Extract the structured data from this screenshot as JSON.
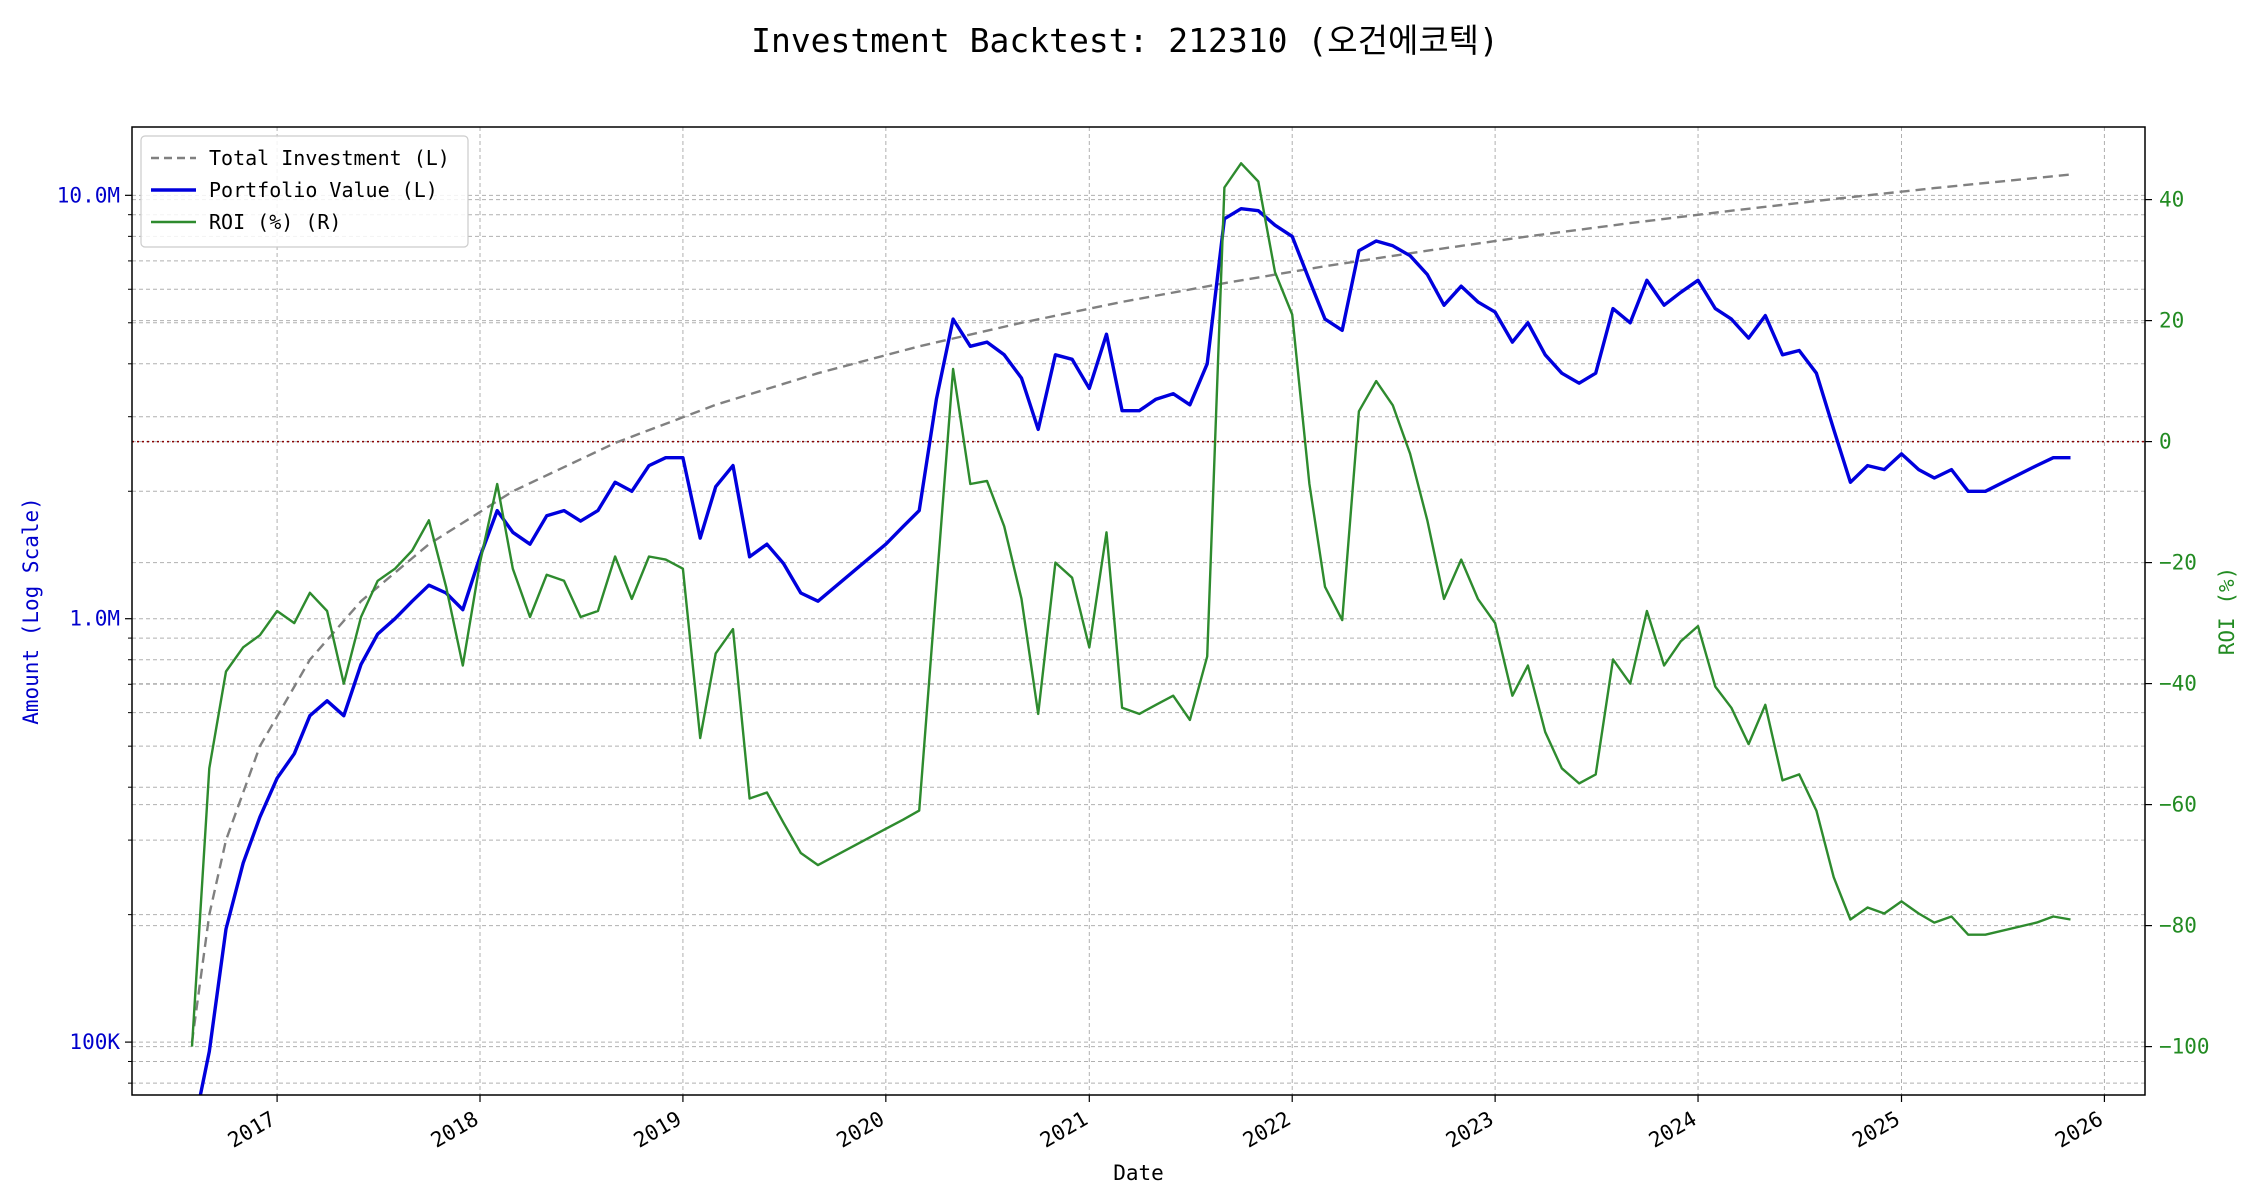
{
  "chart_data": {
    "type": "line",
    "title": "Investment Backtest: 212310 (오건에코텍)",
    "xlabel": "Date",
    "ylabel_left": "Amount (Log Scale)",
    "ylabel_right": "ROI (%)",
    "left_scale": "log",
    "ylim_left": [
      75000,
      14500000
    ],
    "ylim_right": [
      -108,
      52
    ],
    "xlim": [
      "2016-04-15",
      "2026-03-15"
    ],
    "grid": true,
    "legend_position": "top-left",
    "break_even_line": {
      "axis": "right",
      "value": 0,
      "style": "dotted",
      "color": "#8b0000"
    },
    "x_ticks": [
      {
        "date": "2017-01-01",
        "label": "2017"
      },
      {
        "date": "2018-01-01",
        "label": "2018"
      },
      {
        "date": "2019-01-01",
        "label": "2019"
      },
      {
        "date": "2020-01-01",
        "label": "2020"
      },
      {
        "date": "2021-01-01",
        "label": "2021"
      },
      {
        "date": "2022-01-01",
        "label": "2022"
      },
      {
        "date": "2023-01-01",
        "label": "2023"
      },
      {
        "date": "2024-01-01",
        "label": "2024"
      },
      {
        "date": "2025-01-01",
        "label": "2025"
      },
      {
        "date": "2026-01-01",
        "label": "2026"
      }
    ],
    "y_ticks_left": [
      {
        "value": 100000,
        "label": "100K"
      },
      {
        "value": 1000000,
        "label": "1.0M"
      },
      {
        "value": 10000000,
        "label": "10.0M"
      }
    ],
    "y_ticks_right": [
      {
        "value": -100,
        "label": "−100"
      },
      {
        "value": -80,
        "label": "−80"
      },
      {
        "value": -60,
        "label": "−60"
      },
      {
        "value": -40,
        "label": "−40"
      },
      {
        "value": -20,
        "label": "−20"
      },
      {
        "value": 0,
        "label": "0"
      },
      {
        "value": 20,
        "label": "20"
      },
      {
        "value": 40,
        "label": "40"
      }
    ],
    "series": [
      {
        "name": "Total Investment (L)",
        "axis": "left",
        "color": "#808080",
        "style": "dashed",
        "points": [
          [
            "2016-08-01",
            100000
          ],
          [
            "2016-09-01",
            200000
          ],
          [
            "2016-10-01",
            300000
          ],
          [
            "2016-12-01",
            500000
          ],
          [
            "2017-03-01",
            800000
          ],
          [
            "2017-06-01",
            1100000
          ],
          [
            "2017-10-01",
            1500000
          ],
          [
            "2018-03-01",
            2000000
          ],
          [
            "2018-09-01",
            2600000
          ],
          [
            "2019-03-01",
            3200000
          ],
          [
            "2019-09-01",
            3800000
          ],
          [
            "2020-03-01",
            4400000
          ],
          [
            "2020-09-01",
            5000000
          ],
          [
            "2021-03-01",
            5600000
          ],
          [
            "2021-09-01",
            6200000
          ],
          [
            "2022-03-01",
            6800000
          ],
          [
            "2022-09-01",
            7400000
          ],
          [
            "2023-03-01",
            8000000
          ],
          [
            "2023-09-01",
            8600000
          ],
          [
            "2024-03-01",
            9200000
          ],
          [
            "2024-09-01",
            9800000
          ],
          [
            "2025-03-01",
            10400000
          ],
          [
            "2025-11-01",
            11200000
          ]
        ]
      },
      {
        "name": "Portfolio Value (L)",
        "axis": "left",
        "color": "#0000dd",
        "style": "solid",
        "points": [
          [
            "2016-08-01",
            60000
          ],
          [
            "2016-09-01",
            95000
          ],
          [
            "2016-10-01",
            185000
          ],
          [
            "2016-11-01",
            265000
          ],
          [
            "2016-12-01",
            340000
          ],
          [
            "2017-01-01",
            420000
          ],
          [
            "2017-02-01",
            480000
          ],
          [
            "2017-03-01",
            590000
          ],
          [
            "2017-04-01",
            640000
          ],
          [
            "2017-05-01",
            590000
          ],
          [
            "2017-06-01",
            780000
          ],
          [
            "2017-07-01",
            920000
          ],
          [
            "2017-08-01",
            1000000
          ],
          [
            "2017-09-01",
            1100000
          ],
          [
            "2017-10-01",
            1200000
          ],
          [
            "2017-11-01",
            1150000
          ],
          [
            "2017-12-01",
            1050000
          ],
          [
            "2018-01-01",
            1400000
          ],
          [
            "2018-02-01",
            1800000
          ],
          [
            "2018-03-01",
            1600000
          ],
          [
            "2018-04-01",
            1500000
          ],
          [
            "2018-05-01",
            1750000
          ],
          [
            "2018-06-01",
            1800000
          ],
          [
            "2018-07-01",
            1700000
          ],
          [
            "2018-08-01",
            1800000
          ],
          [
            "2018-09-01",
            2100000
          ],
          [
            "2018-10-01",
            2000000
          ],
          [
            "2018-11-01",
            2300000
          ],
          [
            "2018-12-01",
            2400000
          ],
          [
            "2019-01-01",
            2400000
          ],
          [
            "2019-02-01",
            1550000
          ],
          [
            "2019-03-01",
            2050000
          ],
          [
            "2019-04-01",
            2300000
          ],
          [
            "2019-05-01",
            1400000
          ],
          [
            "2019-06-01",
            1500000
          ],
          [
            "2019-07-01",
            1350000
          ],
          [
            "2019-08-01",
            1150000
          ],
          [
            "2019-09-01",
            1100000
          ],
          [
            "2020-01-01",
            1500000
          ],
          [
            "2020-02-01",
            1650000
          ],
          [
            "2020-03-01",
            1800000
          ],
          [
            "2020-04-01",
            3300000
          ],
          [
            "2020-05-01",
            5100000
          ],
          [
            "2020-06-01",
            4400000
          ],
          [
            "2020-07-01",
            4500000
          ],
          [
            "2020-08-01",
            4200000
          ],
          [
            "2020-09-01",
            3700000
          ],
          [
            "2020-10-01",
            2800000
          ],
          [
            "2020-11-01",
            4200000
          ],
          [
            "2020-12-01",
            4100000
          ],
          [
            "2021-01-01",
            3500000
          ],
          [
            "2021-02-01",
            4700000
          ],
          [
            "2021-03-01",
            3100000
          ],
          [
            "2021-04-01",
            3100000
          ],
          [
            "2021-05-01",
            3300000
          ],
          [
            "2021-06-01",
            3400000
          ],
          [
            "2021-07-01",
            3200000
          ],
          [
            "2021-08-01",
            4000000
          ],
          [
            "2021-09-01",
            8800000
          ],
          [
            "2021-10-01",
            9300000
          ],
          [
            "2021-11-01",
            9200000
          ],
          [
            "2021-12-01",
            8500000
          ],
          [
            "2022-01-01",
            8000000
          ],
          [
            "2022-02-01",
            6300000
          ],
          [
            "2022-03-01",
            5100000
          ],
          [
            "2022-04-01",
            4800000
          ],
          [
            "2022-05-01",
            7400000
          ],
          [
            "2022-06-01",
            7800000
          ],
          [
            "2022-07-01",
            7600000
          ],
          [
            "2022-08-01",
            7200000
          ],
          [
            "2022-09-01",
            6500000
          ],
          [
            "2022-10-01",
            5500000
          ],
          [
            "2022-11-01",
            6100000
          ],
          [
            "2022-12-01",
            5600000
          ],
          [
            "2023-01-01",
            5300000
          ],
          [
            "2023-02-01",
            4500000
          ],
          [
            "2023-03-01",
            5000000
          ],
          [
            "2023-04-01",
            4200000
          ],
          [
            "2023-05-01",
            3800000
          ],
          [
            "2023-06-01",
            3600000
          ],
          [
            "2023-07-01",
            3800000
          ],
          [
            "2023-08-01",
            5400000
          ],
          [
            "2023-09-01",
            5000000
          ],
          [
            "2023-10-01",
            6300000
          ],
          [
            "2023-11-01",
            5500000
          ],
          [
            "2023-12-01",
            5900000
          ],
          [
            "2024-01-01",
            6300000
          ],
          [
            "2024-02-01",
            5400000
          ],
          [
            "2024-03-01",
            5100000
          ],
          [
            "2024-04-01",
            4600000
          ],
          [
            "2024-05-01",
            5200000
          ],
          [
            "2024-06-01",
            4200000
          ],
          [
            "2024-07-01",
            4300000
          ],
          [
            "2024-08-01",
            3800000
          ],
          [
            "2024-09-01",
            2800000
          ],
          [
            "2024-10-01",
            2100000
          ],
          [
            "2024-11-01",
            2300000
          ],
          [
            "2024-12-01",
            2250000
          ],
          [
            "2025-01-01",
            2450000
          ],
          [
            "2025-02-01",
            2250000
          ],
          [
            "2025-03-01",
            2150000
          ],
          [
            "2025-04-01",
            2250000
          ],
          [
            "2025-05-01",
            2000000
          ],
          [
            "2025-06-01",
            2000000
          ],
          [
            "2025-09-01",
            2300000
          ],
          [
            "2025-10-01",
            2400000
          ],
          [
            "2025-11-01",
            2400000
          ]
        ]
      },
      {
        "name": "ROI (%) (R)",
        "axis": "right",
        "color": "#2e8b2e",
        "style": "solid",
        "points": [
          [
            "2016-08-01",
            -100
          ],
          [
            "2016-09-01",
            -54
          ],
          [
            "2016-10-01",
            -38
          ],
          [
            "2016-11-01",
            -34
          ],
          [
            "2016-12-01",
            -32
          ],
          [
            "2017-01-01",
            -28
          ],
          [
            "2017-02-01",
            -30
          ],
          [
            "2017-03-01",
            -25
          ],
          [
            "2017-04-01",
            -28
          ],
          [
            "2017-05-01",
            -40
          ],
          [
            "2017-06-01",
            -29
          ],
          [
            "2017-07-01",
            -23
          ],
          [
            "2017-08-01",
            -21
          ],
          [
            "2017-09-01",
            -18
          ],
          [
            "2017-10-01",
            -13
          ],
          [
            "2017-11-01",
            -24
          ],
          [
            "2017-12-01",
            -37
          ],
          [
            "2018-01-01",
            -20
          ],
          [
            "2018-02-01",
            -7
          ],
          [
            "2018-03-01",
            -21
          ],
          [
            "2018-04-01",
            -29
          ],
          [
            "2018-05-01",
            -22
          ],
          [
            "2018-06-01",
            -23
          ],
          [
            "2018-07-01",
            -29
          ],
          [
            "2018-08-01",
            -28
          ],
          [
            "2018-09-01",
            -19
          ],
          [
            "2018-10-01",
            -26
          ],
          [
            "2018-11-01",
            -19
          ],
          [
            "2018-12-01",
            -19.5
          ],
          [
            "2019-01-01",
            -21
          ],
          [
            "2019-02-01",
            -49
          ],
          [
            "2019-03-01",
            -35
          ],
          [
            "2019-04-01",
            -31
          ],
          [
            "2019-05-01",
            -59
          ],
          [
            "2019-06-01",
            -58
          ],
          [
            "2019-07-01",
            -63
          ],
          [
            "2019-08-01",
            -68
          ],
          [
            "2019-09-01",
            -70
          ],
          [
            "2020-01-01",
            -64
          ],
          [
            "2020-02-01",
            -62.5
          ],
          [
            "2020-03-01",
            -61
          ],
          [
            "2020-04-01",
            -24
          ],
          [
            "2020-05-01",
            12
          ],
          [
            "2020-06-01",
            -7
          ],
          [
            "2020-07-01",
            -6.5
          ],
          [
            "2020-08-01",
            -14
          ],
          [
            "2020-09-01",
            -26
          ],
          [
            "2020-10-01",
            -45
          ],
          [
            "2020-11-01",
            -20
          ],
          [
            "2020-12-01",
            -22.5
          ],
          [
            "2021-01-01",
            -34
          ],
          [
            "2021-02-01",
            -15
          ],
          [
            "2021-03-01",
            -44
          ],
          [
            "2021-04-01",
            -45
          ],
          [
            "2021-05-01",
            -43.5
          ],
          [
            "2021-06-01",
            -42
          ],
          [
            "2021-07-01",
            -46
          ],
          [
            "2021-08-01",
            -35.5
          ],
          [
            "2021-09-01",
            42
          ],
          [
            "2021-10-01",
            46
          ],
          [
            "2021-11-01",
            43
          ],
          [
            "2021-12-01",
            28
          ],
          [
            "2022-01-01",
            21
          ],
          [
            "2022-02-01",
            -7
          ],
          [
            "2022-03-01",
            -24
          ],
          [
            "2022-04-01",
            -29.5
          ],
          [
            "2022-05-01",
            5
          ],
          [
            "2022-06-01",
            10
          ],
          [
            "2022-07-01",
            6
          ],
          [
            "2022-08-01",
            -2
          ],
          [
            "2022-09-01",
            -13
          ],
          [
            "2022-10-01",
            -26
          ],
          [
            "2022-11-01",
            -19.5
          ],
          [
            "2022-12-01",
            -26
          ],
          [
            "2023-01-01",
            -30
          ],
          [
            "2023-02-01",
            -42
          ],
          [
            "2023-03-01",
            -37
          ],
          [
            "2023-04-01",
            -48
          ],
          [
            "2023-05-01",
            -54
          ],
          [
            "2023-06-01",
            -56.5
          ],
          [
            "2023-07-01",
            -55
          ],
          [
            "2023-08-01",
            -36
          ],
          [
            "2023-09-01",
            -40
          ],
          [
            "2023-10-01",
            -28
          ],
          [
            "2023-11-01",
            -37
          ],
          [
            "2023-12-01",
            -33
          ],
          [
            "2024-01-01",
            -30.5
          ],
          [
            "2024-02-01",
            -40.5
          ],
          [
            "2024-03-01",
            -44
          ],
          [
            "2024-04-01",
            -50
          ],
          [
            "2024-05-01",
            -43.5
          ],
          [
            "2024-06-01",
            -56
          ],
          [
            "2024-07-01",
            -55
          ],
          [
            "2024-08-01",
            -61
          ],
          [
            "2024-09-01",
            -72
          ],
          [
            "2024-10-01",
            -79
          ],
          [
            "2024-11-01",
            -77
          ],
          [
            "2024-12-01",
            -78
          ],
          [
            "2025-01-01",
            -76
          ],
          [
            "2025-02-01",
            -78
          ],
          [
            "2025-03-01",
            -79.5
          ],
          [
            "2025-04-01",
            -78.5
          ],
          [
            "2025-05-01",
            -81.5
          ],
          [
            "2025-06-01",
            -81.5
          ],
          [
            "2025-09-01",
            -79.5
          ],
          [
            "2025-10-01",
            -78.5
          ],
          [
            "2025-11-01",
            -79
          ]
        ]
      }
    ]
  }
}
